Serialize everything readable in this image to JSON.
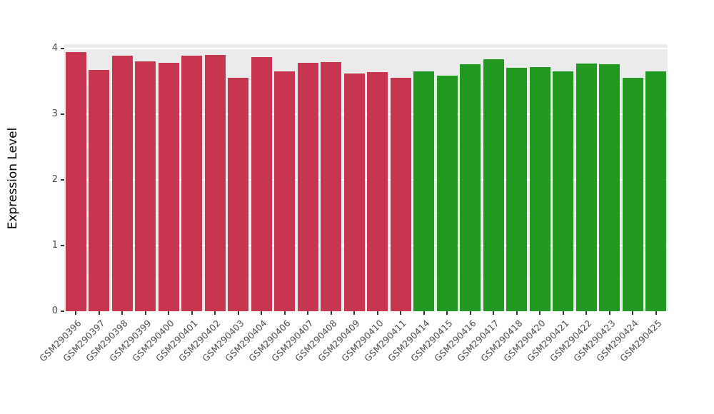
{
  "chart_data": {
    "type": "bar",
    "title": "",
    "xlabel": "",
    "ylabel": "Expression Level",
    "ylim": [
      0,
      4.07
    ],
    "yticks": [
      0,
      1,
      2,
      3,
      4
    ],
    "minor_yticks": [
      0.5,
      1.5,
      2.5,
      3.5
    ],
    "grid": "on",
    "legend": "none",
    "panel_background": "#EBEBEB",
    "gridline_color": "#FFFFFF",
    "axis_text_color": "#4D4D4D",
    "categories": [
      "GSM290396",
      "GSM290397",
      "GSM290398",
      "GSM290399",
      "GSM290400",
      "GSM290401",
      "GSM290402",
      "GSM290403",
      "GSM290404",
      "GSM290406",
      "GSM290407",
      "GSM290408",
      "GSM290409",
      "GSM290410",
      "GSM290411",
      "GSM290414",
      "GSM290415",
      "GSM290416",
      "GSM290417",
      "GSM290418",
      "GSM290420",
      "GSM290421",
      "GSM290422",
      "GSM290423",
      "GSM290424",
      "GSM290425"
    ],
    "values": [
      3.95,
      3.68,
      3.9,
      3.81,
      3.79,
      3.9,
      3.91,
      3.56,
      3.87,
      3.66,
      3.79,
      3.8,
      3.62,
      3.65,
      3.56,
      3.66,
      3.59,
      3.76,
      3.84,
      3.71,
      3.72,
      3.66,
      3.78,
      3.76,
      3.56,
      3.66
    ],
    "bar_colors": [
      "#C8354E",
      "#C8354E",
      "#C8354E",
      "#C8354E",
      "#C8354E",
      "#C8354E",
      "#C8354E",
      "#C8354E",
      "#C8354E",
      "#C8354E",
      "#C8354E",
      "#C8354E",
      "#C8354E",
      "#C8354E",
      "#C8354E",
      "#229A22",
      "#229A22",
      "#229A22",
      "#229A22",
      "#229A22",
      "#229A22",
      "#229A22",
      "#229A22",
      "#229A22",
      "#229A22",
      "#229A22"
    ]
  }
}
